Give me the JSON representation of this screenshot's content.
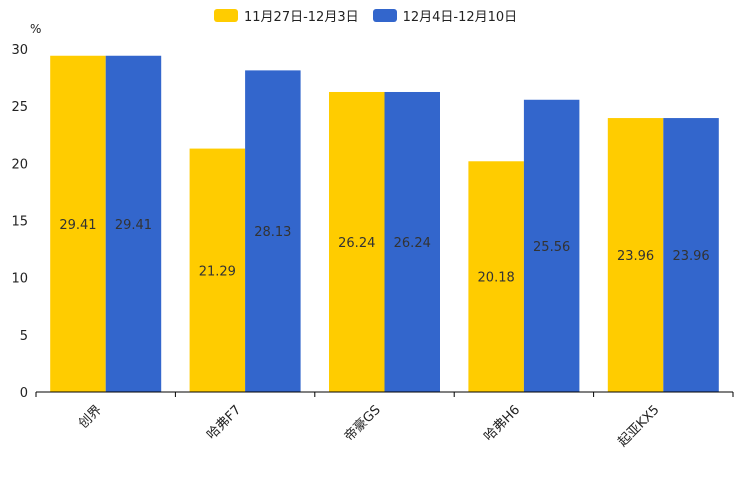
{
  "chart_data": {
    "type": "bar",
    "unit": "%",
    "categories": [
      "创界",
      "哈弗F7",
      "帝豪GS",
      "哈弗H6",
      "起亚KX5"
    ],
    "series": [
      {
        "name": "11月27日-12月3日",
        "color": "#FFCC00",
        "values": [
          29.41,
          21.29,
          26.24,
          20.18,
          23.96
        ]
      },
      {
        "name": "12月4日-12月10日",
        "color": "#3366CC",
        "values": [
          29.41,
          28.13,
          26.24,
          25.56,
          23.96
        ]
      }
    ],
    "yticks": [
      0,
      5,
      10,
      15,
      20,
      25,
      30
    ],
    "ylim": [
      0,
      30
    ],
    "legend_position": "top-center"
  }
}
